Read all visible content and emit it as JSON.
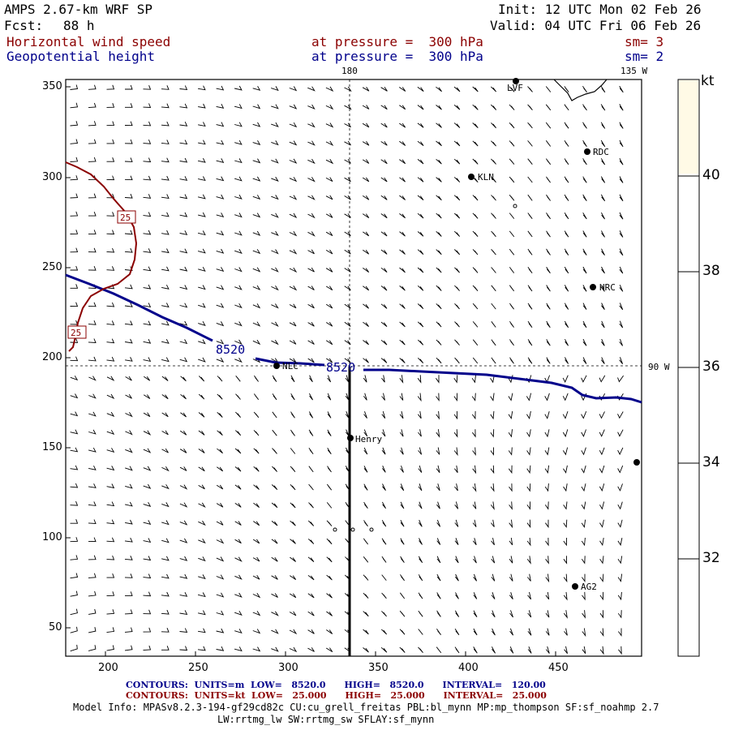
{
  "header": {
    "model": "AMPS 2.67-km WRF SP",
    "init": "Init: 12 UTC Mon 02 Feb 26",
    "fcst_label": "Fcst:",
    "fcst_value": "88 h",
    "valid": "Valid: 04 UTC Fri 06 Feb 26"
  },
  "fields": [
    {
      "name": "Horizontal wind speed",
      "pressure": "at pressure =  300 hPa",
      "sm": "sm= 3"
    },
    {
      "name": "Geopotential height",
      "pressure": "at pressure =  300 hPa",
      "sm": "sm= 2"
    }
  ],
  "map": {
    "xticks": [
      "200",
      "250",
      "300",
      "350",
      "400",
      "450"
    ],
    "yticks": [
      "350",
      "300",
      "250",
      "200",
      "150",
      "100",
      "50"
    ],
    "meridian_top": "180",
    "meridian_135": "135 W",
    "parallel_90": "90 W",
    "contour_label_height": "8520",
    "contour_label_wind": "25",
    "stations": [
      "LVF",
      "RDC",
      "KLN",
      "HRC",
      "NLC",
      "Henry",
      "AG2"
    ]
  },
  "colorbar": {
    "unit": "kt",
    "labels": [
      "40",
      "38",
      "36",
      "34",
      "32"
    ],
    "top_color": "#fffae6"
  },
  "footer": {
    "contours_height": "CONTOURS:  UNITS=m  LOW=   8520.0      HIGH=   8520.0      INTERVAL=   120.00",
    "contours_wind": "CONTOURS:  UNITS=kt  LOW=   25.000      HIGH=   25.000      INTERVAL=   25.000",
    "model_info": "Model Info: MPASv8.2.3-194-gf29cd82c CU:cu_grell_freitas PBL:bl_mynn MP:mp_thompson SF:sf_noahmp 2.7",
    "model_info2": "LW:rrtmg_lw SW:rrtmg_sw SFLAY:sf_mynn"
  },
  "colors": {
    "height_contour": "#00008b",
    "wind_contour": "#8b0000"
  }
}
